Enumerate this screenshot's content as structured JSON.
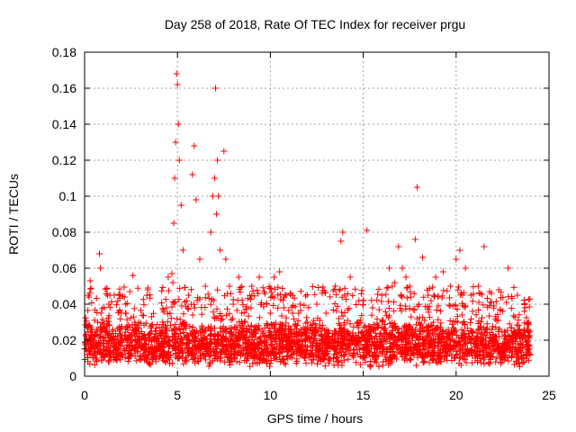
{
  "chart_data": {
    "type": "scatter",
    "title": "Day 258 of 2018, Rate Of TEC Index for receiver prgu",
    "xlabel": "GPS time / hours",
    "ylabel": "ROTI / TECUs",
    "xlim": [
      0,
      25
    ],
    "ylim": [
      0,
      0.18
    ],
    "xticks": [
      "0",
      "5",
      "10",
      "15",
      "20",
      "25"
    ],
    "yticks": [
      "0",
      "0.02",
      "0.04",
      "0.06",
      "0.08",
      "0.1",
      "0.12",
      "0.14",
      "0.16",
      "0.18"
    ],
    "grid": true,
    "marker": "+",
    "color": "#ff0000",
    "series": [
      {
        "name": "",
        "x": [
          0.1,
          0.2,
          0.3,
          0.5,
          0.7,
          0.8,
          0.85,
          0.9,
          1.0,
          1.3,
          1.6,
          1.9,
          2.2,
          2.6,
          2.7,
          3.0,
          3.4,
          3.8,
          4.2,
          4.5,
          4.6,
          4.7,
          4.75,
          4.8,
          4.85,
          4.9,
          4.95,
          5.0,
          5.05,
          5.1,
          5.2,
          5.3,
          5.6,
          5.8,
          5.9,
          6.0,
          6.2,
          6.5,
          6.8,
          6.9,
          7.0,
          7.05,
          7.1,
          7.15,
          7.2,
          7.3,
          7.5,
          7.6,
          7.8,
          8.0,
          8.3,
          8.6,
          9.0,
          9.4,
          9.8,
          10.2,
          10.5,
          10.8,
          11.2,
          11.6,
          12.0,
          12.5,
          13.0,
          13.5,
          13.8,
          13.9,
          14.0,
          14.3,
          14.7,
          15.0,
          15.2,
          15.5,
          16.0,
          16.4,
          16.7,
          16.9,
          17.1,
          17.3,
          17.5,
          17.8,
          17.9,
          18.2,
          18.5,
          18.9,
          19.3,
          19.7,
          20.0,
          20.2,
          20.5,
          20.8,
          21.2,
          21.5,
          21.8,
          22.3,
          22.8,
          23.3,
          23.7,
          23.9
        ],
        "y": [
          0.015,
          0.045,
          0.053,
          0.02,
          0.03,
          0.068,
          0.06,
          0.025,
          0.018,
          0.04,
          0.045,
          0.02,
          0.035,
          0.056,
          0.03,
          0.02,
          0.048,
          0.025,
          0.03,
          0.055,
          0.035,
          0.057,
          0.052,
          0.085,
          0.11,
          0.13,
          0.168,
          0.162,
          0.14,
          0.12,
          0.095,
          0.07,
          0.045,
          0.112,
          0.128,
          0.098,
          0.065,
          0.05,
          0.08,
          0.1,
          0.11,
          0.16,
          0.09,
          0.12,
          0.1,
          0.07,
          0.125,
          0.065,
          0.05,
          0.04,
          0.055,
          0.03,
          0.05,
          0.055,
          0.04,
          0.055,
          0.058,
          0.045,
          0.035,
          0.04,
          0.03,
          0.04,
          0.035,
          0.05,
          0.075,
          0.08,
          0.045,
          0.055,
          0.03,
          0.042,
          0.081,
          0.038,
          0.045,
          0.06,
          0.052,
          0.072,
          0.06,
          0.055,
          0.05,
          0.076,
          0.105,
          0.066,
          0.045,
          0.055,
          0.058,
          0.05,
          0.065,
          0.07,
          0.06,
          0.045,
          0.05,
          0.072,
          0.047,
          0.048,
          0.06,
          0.045,
          0.038,
          0.03
        ],
        "baseline_band": [
          0.005,
          0.03
        ],
        "time_range": [
          0,
          24
        ]
      }
    ]
  }
}
